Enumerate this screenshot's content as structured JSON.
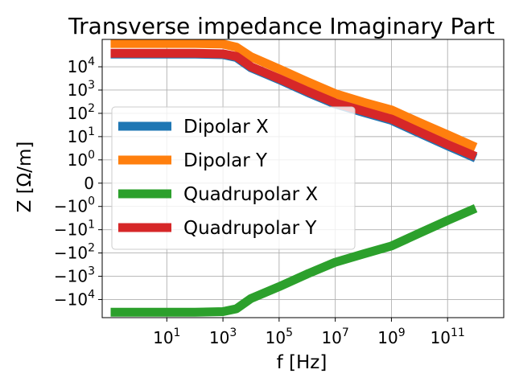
{
  "chart_data": {
    "type": "line",
    "title": "Transverse impedance Imaginary Part",
    "xlabel": "f [Hz]",
    "ylabel": "Z [Ω/m]",
    "xscale": "log",
    "yscale": "symlog",
    "symlog_linthresh": 1,
    "xlim": [
      0.05,
      10000000000000.0
    ],
    "ylim": [
      -60000,
      150000
    ],
    "grid": true,
    "legend_position": "center-left",
    "x_ticks": [
      {
        "value": 10,
        "base": "10",
        "exp": "1"
      },
      {
        "value": 1000,
        "base": "10",
        "exp": "3"
      },
      {
        "value": 100000,
        "base": "10",
        "exp": "5"
      },
      {
        "value": 10000000,
        "base": "10",
        "exp": "7"
      },
      {
        "value": 1000000000,
        "base": "10",
        "exp": "9"
      },
      {
        "value": 100000000000,
        "base": "10",
        "exp": "11"
      }
    ],
    "y_ticks": [
      {
        "value": 10000,
        "sign": "",
        "base": "10",
        "exp": "4"
      },
      {
        "value": 1000,
        "sign": "",
        "base": "10",
        "exp": "3"
      },
      {
        "value": 100,
        "sign": "",
        "base": "10",
        "exp": "2"
      },
      {
        "value": 10,
        "sign": "",
        "base": "10",
        "exp": "1"
      },
      {
        "value": 1,
        "sign": "",
        "base": "10",
        "exp": "0"
      },
      {
        "value": 0,
        "sign": "",
        "base": "0",
        "exp": ""
      },
      {
        "value": -1,
        "sign": "−",
        "base": "10",
        "exp": "0"
      },
      {
        "value": -10,
        "sign": "−",
        "base": "10",
        "exp": "1"
      },
      {
        "value": -100,
        "sign": "−",
        "base": "10",
        "exp": "2"
      },
      {
        "value": -1000,
        "sign": "−",
        "base": "10",
        "exp": "3"
      },
      {
        "value": -10000,
        "sign": "−",
        "base": "10",
        "exp": "4"
      }
    ],
    "series": [
      {
        "name": "Dipolar X",
        "color": "#1f77b4",
        "points": [
          [
            0.1,
            35000
          ],
          [
            1,
            35000
          ],
          [
            10,
            35000
          ],
          [
            100,
            35000
          ],
          [
            1000,
            33000
          ],
          [
            3000,
            25000
          ],
          [
            10000,
            9000
          ],
          [
            100000,
            2800
          ],
          [
            1000000,
            800
          ],
          [
            10000000,
            250
          ],
          [
            100000000,
            110
          ],
          [
            1000000000,
            50
          ],
          [
            10000000000,
            14
          ],
          [
            100000000000,
            4
          ],
          [
            1000000000000,
            1.2
          ]
        ]
      },
      {
        "name": "Dipolar Y",
        "color": "#ff7f0e",
        "points": [
          [
            0.1,
            100000
          ],
          [
            1,
            100000
          ],
          [
            10,
            100000
          ],
          [
            100,
            100000
          ],
          [
            1000,
            95000
          ],
          [
            3000,
            70000
          ],
          [
            10000,
            27000
          ],
          [
            100000,
            8000
          ],
          [
            1000000,
            2300
          ],
          [
            10000000,
            700
          ],
          [
            100000000,
            300
          ],
          [
            1000000000,
            140
          ],
          [
            10000000000,
            40
          ],
          [
            100000000000,
            12
          ],
          [
            1000000000000,
            3.5
          ]
        ]
      },
      {
        "name": "Quadrupolar X",
        "color": "#2ca02c",
        "points": [
          [
            0.1,
            -35000
          ],
          [
            1,
            -35000
          ],
          [
            10,
            -35000
          ],
          [
            100,
            -35000
          ],
          [
            1000,
            -33000
          ],
          [
            3000,
            -25000
          ],
          [
            10000,
            -9000
          ],
          [
            100000,
            -2800
          ],
          [
            1000000,
            -800
          ],
          [
            10000000,
            -250
          ],
          [
            100000000,
            -110
          ],
          [
            1000000000,
            -50
          ],
          [
            10000000000,
            -14
          ],
          [
            100000000000,
            -4
          ],
          [
            1000000000000,
            -1.2
          ]
        ]
      },
      {
        "name": "Quadrupolar Y",
        "color": "#d62728",
        "points": [
          [
            0.1,
            38000
          ],
          [
            1,
            38000
          ],
          [
            10,
            38000
          ],
          [
            100,
            38000
          ],
          [
            1000,
            36000
          ],
          [
            3000,
            28000
          ],
          [
            10000,
            10000
          ],
          [
            100000,
            3100
          ],
          [
            1000000,
            900
          ],
          [
            10000000,
            280
          ],
          [
            100000000,
            125
          ],
          [
            1000000000,
            57
          ],
          [
            10000000000,
            16
          ],
          [
            100000000000,
            4.6
          ],
          [
            1000000000000,
            1.4
          ]
        ]
      }
    ]
  }
}
